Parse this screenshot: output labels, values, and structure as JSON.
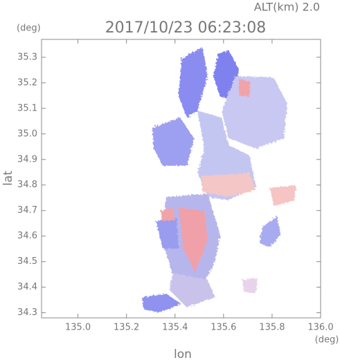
{
  "chart_data": {
    "type": "map",
    "altitude_label": "ALT(km) 2.0",
    "title": "2017/10/23 06:23:08",
    "y_unit": "(deg)",
    "x_unit": "(deg)",
    "x_label": "lon",
    "y_label": "lat",
    "xlim": [
      134.85,
      136.0
    ],
    "ylim": [
      34.28,
      35.37
    ],
    "xticks": [
      {
        "value": 135.0,
        "label": "135.0"
      },
      135.2,
      135.4,
      135.6,
      135.8,
      {
        "value": 136.0,
        "label": "136.0"
      }
    ],
    "yticks": [
      34.3,
      34.4,
      34.5,
      34.6,
      34.7,
      34.8,
      34.9,
      {
        "value": 35.0,
        "label": "35.0"
      },
      35.1,
      35.2,
      35.3
    ]
  }
}
